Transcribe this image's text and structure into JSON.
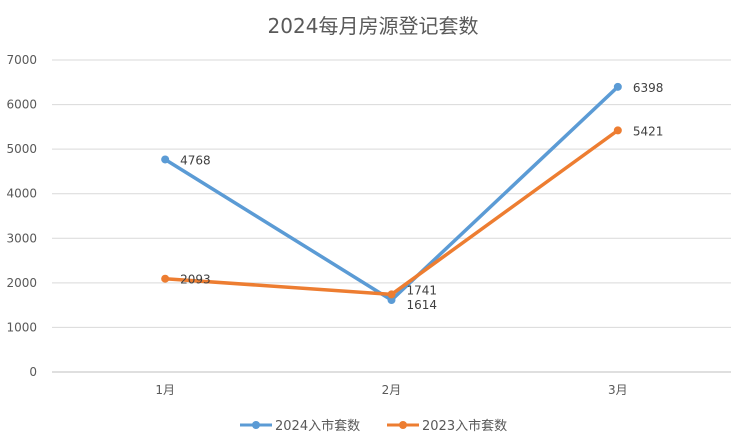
{
  "chart_data": {
    "type": "line",
    "title": "2024每月房源登记套数",
    "categories": [
      "1月",
      "2月",
      "3月"
    ],
    "series": [
      {
        "name": "2024入市套数",
        "values": [
          4768,
          1614,
          6398
        ],
        "color": "#5B9BD5"
      },
      {
        "name": "2023入市套数",
        "values": [
          2093,
          1741,
          5421
        ],
        "color": "#ED7D31"
      }
    ],
    "ylim": [
      0,
      7000
    ],
    "yticks": [
      0,
      1000,
      2000,
      3000,
      4000,
      5000,
      6000,
      7000
    ],
    "grid": true,
    "legend_position": "bottom",
    "data_labels": true
  }
}
